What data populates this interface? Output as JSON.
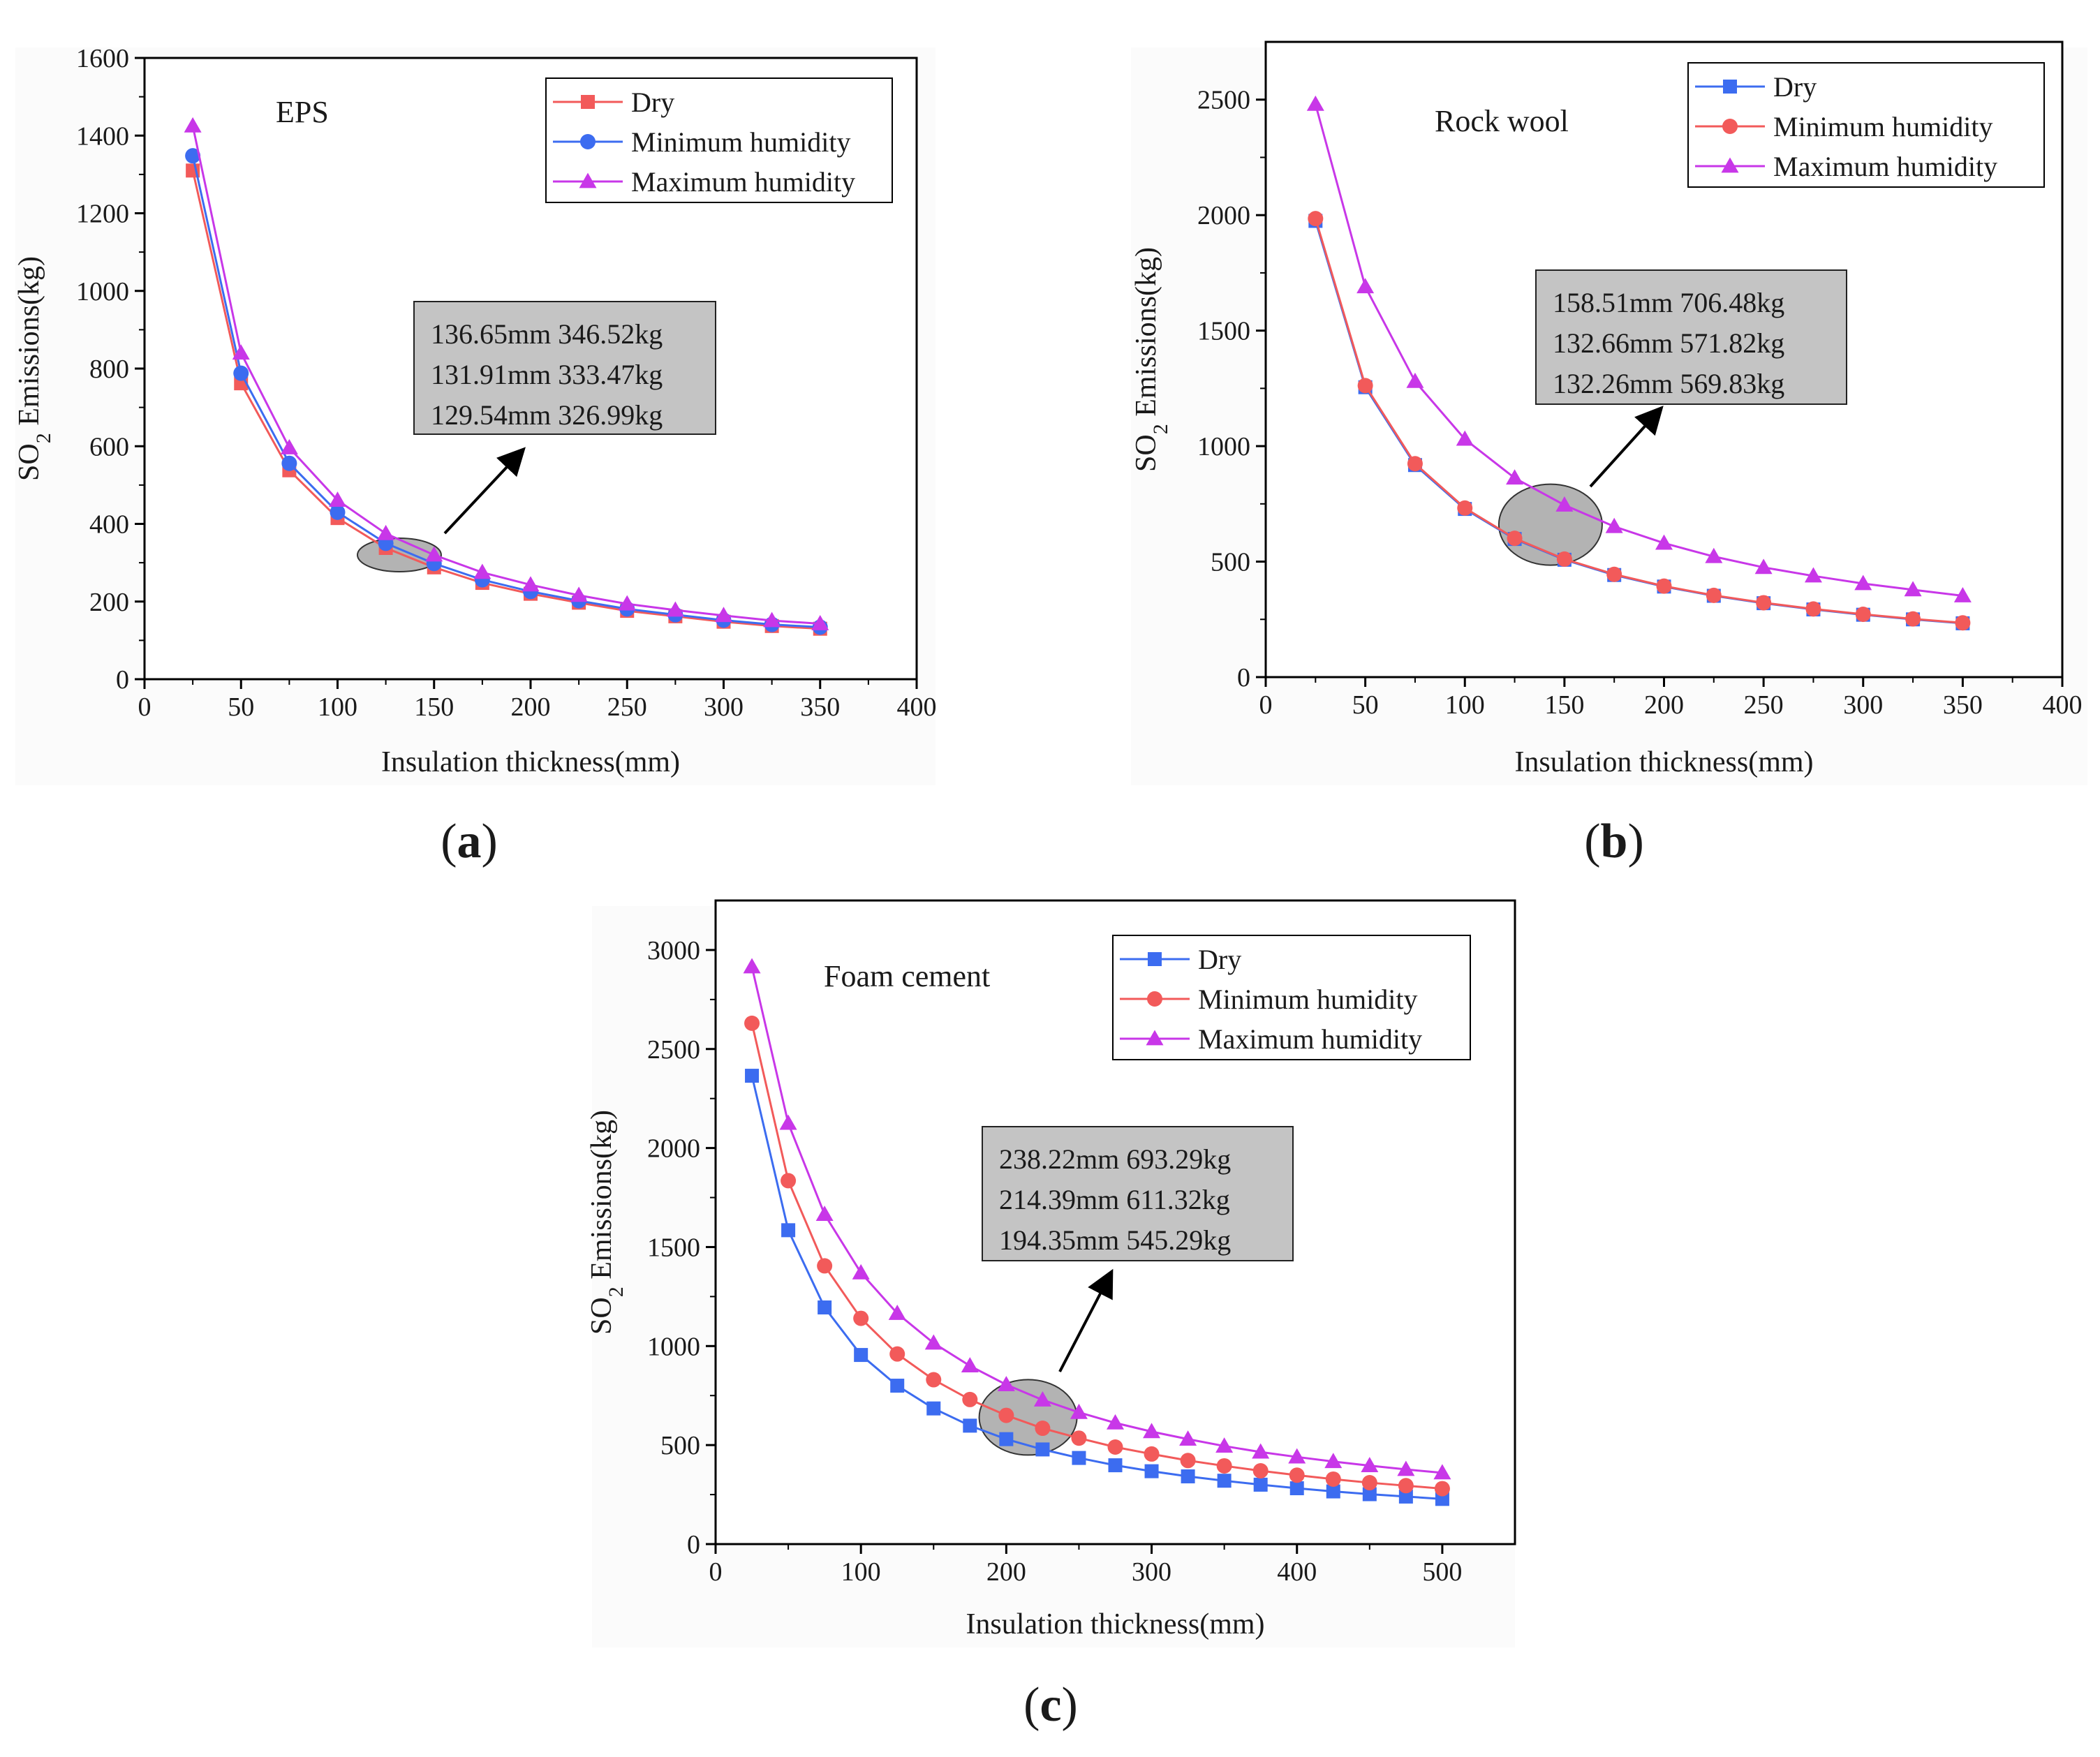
{
  "colors": {
    "dry": "#f25a5a",
    "dry_blue": "#3c6cf0",
    "minimum_humidity_blue": "#3c6cf0",
    "minimum_humidity_red": "#f25a5a",
    "maximum_humidity": "#c837e8"
  },
  "chart_data": [
    {
      "id": "a",
      "type": "line",
      "title": "EPS",
      "xlabel": "Insulation thickness(mm)",
      "ylabel_main": "SO",
      "ylabel_sub": "2",
      "ylabel_rest": " Emissions(kg)",
      "xlim": [
        0,
        400
      ],
      "ylim": [
        0,
        1600
      ],
      "xticks": [
        0,
        50,
        100,
        150,
        200,
        250,
        300,
        350,
        400
      ],
      "yticks": [
        0,
        200,
        400,
        600,
        800,
        1000,
        1200,
        1400,
        1600
      ],
      "x": [
        25,
        50,
        75,
        100,
        125,
        150,
        175,
        200,
        225,
        250,
        275,
        300,
        325,
        350
      ],
      "series": [
        {
          "name": "Dry",
          "color": "#f25a5a",
          "marker": "square",
          "values": [
            1310,
            762,
            538,
            415,
            338,
            288,
            248,
            220,
            197,
            176,
            162,
            148,
            137,
            130
          ]
        },
        {
          "name": "Minimum humidity",
          "color": "#3c6cf0",
          "marker": "circle",
          "values": [
            1348,
            788,
            556,
            430,
            350,
            298,
            256,
            226,
            202,
            181,
            166,
            152,
            141,
            134
          ]
        },
        {
          "name": "Maximum humidity",
          "color": "#c837e8",
          "marker": "triangle",
          "values": [
            1425,
            840,
            596,
            461,
            375,
            320,
            275,
            243,
            216,
            194,
            178,
            164,
            151,
            143
          ]
        }
      ],
      "annotation": [
        "136.65mm 346.52kg",
        "131.91mm 333.47kg",
        "129.54mm 326.99kg"
      ],
      "highlight_center": [
        132,
        320
      ]
    },
    {
      "id": "b",
      "type": "line",
      "title": "Rock wool",
      "xlabel": "Insulation thickness(mm)",
      "ylabel_main": "SO",
      "ylabel_sub": "2",
      "ylabel_rest": " Emissions(kg)",
      "xlim": [
        0,
        400
      ],
      "ylim": [
        0,
        2750
      ],
      "xticks": [
        0,
        50,
        100,
        150,
        200,
        250,
        300,
        350,
        400
      ],
      "yticks": [
        0,
        500,
        1000,
        1500,
        2000,
        2500
      ],
      "x": [
        25,
        50,
        75,
        100,
        125,
        150,
        175,
        200,
        225,
        250,
        275,
        300,
        325,
        350
      ],
      "series": [
        {
          "name": "Dry",
          "color": "#3c6cf0",
          "marker": "square",
          "values": [
            1975,
            1255,
            918,
            728,
            598,
            508,
            442,
            392,
            352,
            320,
            293,
            270,
            250,
            233
          ]
        },
        {
          "name": "Minimum humidity",
          "color": "#f25a5a",
          "marker": "circle",
          "values": [
            1985,
            1262,
            924,
            732,
            601,
            511,
            445,
            394,
            354,
            322,
            295,
            272,
            252,
            235
          ]
        },
        {
          "name": "Maximum humidity",
          "color": "#c837e8",
          "marker": "triangle",
          "values": [
            2480,
            1690,
            1280,
            1030,
            862,
            745,
            652,
            580,
            522,
            475,
            438,
            405,
            378,
            352
          ]
        }
      ],
      "annotation": [
        "158.51mm 706.48kg",
        "132.66mm 571.82kg",
        "132.26mm 569.83kg"
      ],
      "highlight_center": [
        143,
        660
      ]
    },
    {
      "id": "c",
      "type": "line",
      "title": "Foam cement",
      "xlabel": "Insulation thickness(mm)",
      "ylabel_main": "SO",
      "ylabel_sub": "2",
      "ylabel_rest": " Emissions(kg)",
      "xlim": [
        0,
        550
      ],
      "ylim": [
        0,
        3250
      ],
      "xticks": [
        0,
        100,
        200,
        300,
        400,
        500
      ],
      "yticks": [
        0,
        500,
        1000,
        1500,
        2000,
        2500,
        3000
      ],
      "x": [
        25,
        50,
        75,
        100,
        125,
        150,
        175,
        200,
        225,
        250,
        275,
        300,
        325,
        350,
        375,
        400,
        425,
        450,
        475,
        500
      ],
      "series": [
        {
          "name": "Dry",
          "color": "#3c6cf0",
          "marker": "square",
          "values": [
            2365,
            1585,
            1195,
            955,
            800,
            685,
            598,
            530,
            478,
            435,
            398,
            368,
            342,
            320,
            300,
            282,
            266,
            252,
            240,
            228
          ]
        },
        {
          "name": "Minimum humidity",
          "color": "#f25a5a",
          "marker": "circle",
          "values": [
            2630,
            1835,
            1405,
            1140,
            960,
            830,
            730,
            650,
            585,
            535,
            490,
            455,
            422,
            395,
            370,
            348,
            328,
            310,
            295,
            280
          ]
        },
        {
          "name": "Maximum humidity",
          "color": "#c837e8",
          "marker": "triangle",
          "values": [
            2915,
            2125,
            1665,
            1370,
            1165,
            1015,
            900,
            805,
            728,
            665,
            612,
            568,
            530,
            495,
            465,
            440,
            417,
            396,
            377,
            360
          ]
        }
      ],
      "annotation": [
        "238.22mm 693.29kg",
        "214.39mm 611.32kg",
        "194.35mm 545.29kg"
      ],
      "highlight_center": [
        215,
        640
      ]
    }
  ],
  "panel_labels": {
    "a": {
      "open": "(",
      "letter": "a",
      "close": ")"
    },
    "b": {
      "open": "(",
      "letter": "b",
      "close": ")"
    },
    "c": {
      "open": "(",
      "letter": "c",
      "close": ")"
    }
  }
}
